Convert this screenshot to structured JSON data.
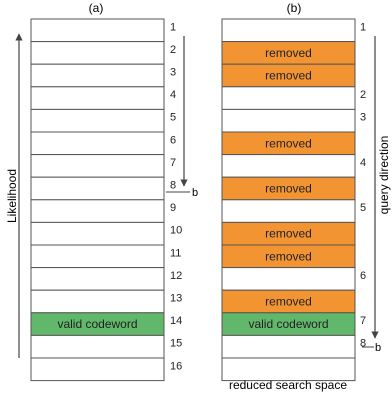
{
  "panel_a": {
    "label": "(a)",
    "axis_label": "Likelihood",
    "rows": [
      {
        "num": "1",
        "text": "",
        "state": "plain"
      },
      {
        "num": "2",
        "text": "",
        "state": "plain"
      },
      {
        "num": "3",
        "text": "",
        "state": "plain"
      },
      {
        "num": "4",
        "text": "",
        "state": "plain"
      },
      {
        "num": "5",
        "text": "",
        "state": "plain"
      },
      {
        "num": "6",
        "text": "",
        "state": "plain"
      },
      {
        "num": "7",
        "text": "",
        "state": "plain"
      },
      {
        "num": "8",
        "text": "",
        "state": "plain"
      },
      {
        "num": "9",
        "text": "",
        "state": "plain"
      },
      {
        "num": "10",
        "text": "",
        "state": "plain"
      },
      {
        "num": "11",
        "text": "",
        "state": "plain"
      },
      {
        "num": "12",
        "text": "",
        "state": "plain"
      },
      {
        "num": "13",
        "text": "",
        "state": "plain"
      },
      {
        "num": "14",
        "text": "valid codeword",
        "state": "valid"
      },
      {
        "num": "15",
        "text": "",
        "state": "plain"
      },
      {
        "num": "16",
        "text": "",
        "state": "plain"
      }
    ],
    "marker_label": "b"
  },
  "panel_b": {
    "label": "(b)",
    "axis_label": "query direction",
    "caption": "reduced search space",
    "rows": [
      {
        "num": "1",
        "text": "",
        "state": "plain"
      },
      {
        "num": "",
        "text": "removed",
        "state": "removed"
      },
      {
        "num": "",
        "text": "removed",
        "state": "removed"
      },
      {
        "num": "2",
        "text": "",
        "state": "plain"
      },
      {
        "num": "3",
        "text": "",
        "state": "plain"
      },
      {
        "num": "",
        "text": "removed",
        "state": "removed"
      },
      {
        "num": "4",
        "text": "",
        "state": "plain"
      },
      {
        "num": "",
        "text": "removed",
        "state": "removed"
      },
      {
        "num": "5",
        "text": "",
        "state": "plain"
      },
      {
        "num": "",
        "text": "removed",
        "state": "removed"
      },
      {
        "num": "",
        "text": "removed",
        "state": "removed"
      },
      {
        "num": "6",
        "text": "",
        "state": "plain"
      },
      {
        "num": "",
        "text": "removed",
        "state": "removed"
      },
      {
        "num": "7",
        "text": "valid codeword",
        "state": "valid"
      },
      {
        "num": "8",
        "text": "",
        "state": "plain"
      },
      {
        "num": "",
        "text": "",
        "state": "plain"
      }
    ],
    "marker_label": "b"
  },
  "colors": {
    "removed": "#f39433",
    "valid": "#62b86a",
    "plain": "#ffffff",
    "border": "#555555",
    "arrow": "#444444"
  }
}
